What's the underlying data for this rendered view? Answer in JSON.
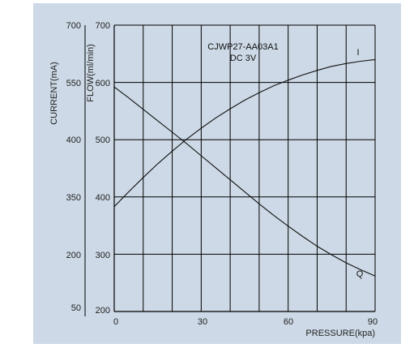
{
  "chart_data": {
    "type": "line",
    "title": "",
    "annotations": [
      "CJWP27-AA03A1",
      "DC 3V"
    ],
    "xlabel": "PRESSURE(kpa)",
    "ylabel_current": "CURRENT(mA)",
    "ylabel_flow": "FLOW(ml/min)",
    "xlim": [
      0,
      90
    ],
    "ylim_flow": [
      200,
      700
    ],
    "x_ticks": [
      "0",
      "30",
      "60",
      "90"
    ],
    "current_ticks": [
      "700",
      "550",
      "400",
      "350",
      "200",
      "50"
    ],
    "flow_ticks": [
      "700",
      "600",
      "500",
      "400",
      "300",
      "200"
    ],
    "grid": true,
    "vertical_grid_x": [
      0,
      10,
      20,
      30,
      40,
      50,
      60,
      70,
      80,
      90
    ],
    "horizontal_grid_flow": [
      300,
      400,
      500,
      600,
      700
    ],
    "series": [
      {
        "name": "I",
        "x": [
          0,
          5,
          10,
          15,
          20,
          25,
          30,
          35,
          40,
          45,
          50,
          55,
          60,
          65,
          70,
          75,
          80,
          85,
          90
        ],
        "values": [
          383,
          409,
          434,
          458,
          480,
          501,
          520,
          538,
          554,
          569,
          582,
          594,
          604,
          613,
          621,
          628,
          633,
          637,
          640
        ]
      },
      {
        "name": "Q",
        "x": [
          0,
          5,
          10,
          15,
          20,
          25,
          30,
          35,
          40,
          45,
          50,
          55,
          60,
          65,
          70,
          75,
          80,
          85,
          90
        ],
        "values": [
          592,
          573,
          553,
          533,
          513,
          493,
          472,
          451,
          430,
          409,
          388,
          368,
          349,
          331,
          314,
          299,
          285,
          273,
          262
        ]
      }
    ]
  },
  "colors": {
    "background": "#cdd9e6",
    "plot_background": "#cdd9e6",
    "grid": "#000000",
    "line": "#111111"
  }
}
